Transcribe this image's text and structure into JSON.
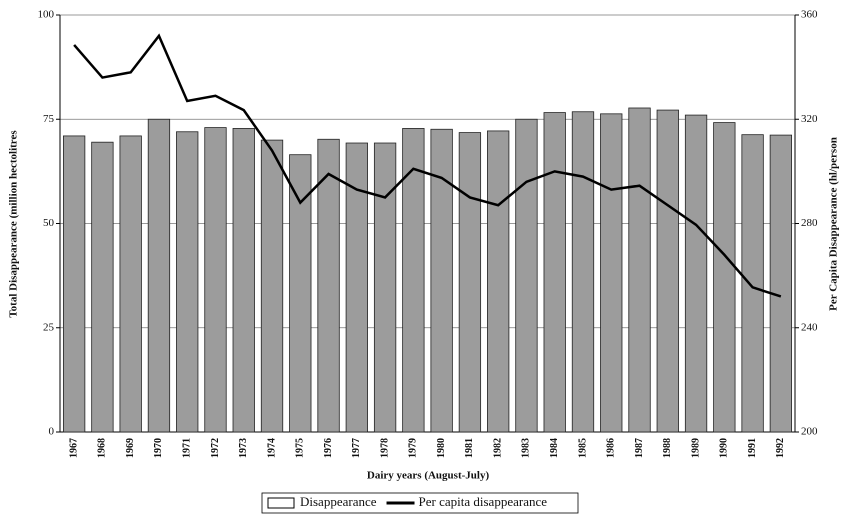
{
  "chart_data": {
    "type": "bar",
    "categories": [
      "1967",
      "1968",
      "1969",
      "1970",
      "1971",
      "1972",
      "1973",
      "1974",
      "1975",
      "1976",
      "1977",
      "1978",
      "1979",
      "1980",
      "1981",
      "1982",
      "1983",
      "1984",
      "1985",
      "1986",
      "1987",
      "1988",
      "1989",
      "1990",
      "1991",
      "1992"
    ],
    "series": [
      {
        "name": "Disappearance",
        "type": "bar",
        "color": "#9c9c9c",
        "values": [
          71,
          69.5,
          71,
          75,
          72,
          73,
          72.8,
          70,
          66.5,
          70.2,
          69.3,
          69.3,
          72.8,
          72.6,
          71.8,
          72.2,
          75,
          76.6,
          76.8,
          76.3,
          77.7,
          77.2,
          76,
          74.2,
          71.3,
          71.2
        ]
      },
      {
        "name": "Per capita disappearance",
        "type": "line",
        "axis": "y2",
        "color": "#000000",
        "values": [
          348.5,
          336,
          338,
          352,
          327,
          329,
          323.5,
          308,
          288,
          299,
          293,
          290,
          301,
          297.5,
          290,
          287,
          296,
          300,
          298,
          293,
          294.5,
          287,
          279.5,
          268,
          255.5,
          252
        ]
      }
    ],
    "xlabel": "Dairy years (August-July)",
    "ylabel": "Total Disappearance (million hectolitres",
    "y2label": "Per Capita Disappearance (hl/person",
    "ylim": [
      0,
      100
    ],
    "yticks": [
      0,
      25,
      50,
      75,
      100
    ],
    "y2lim": [
      200,
      360
    ],
    "y2ticks": [
      200,
      240,
      280,
      320,
      360
    ],
    "grid": true,
    "legend": "bottom"
  }
}
